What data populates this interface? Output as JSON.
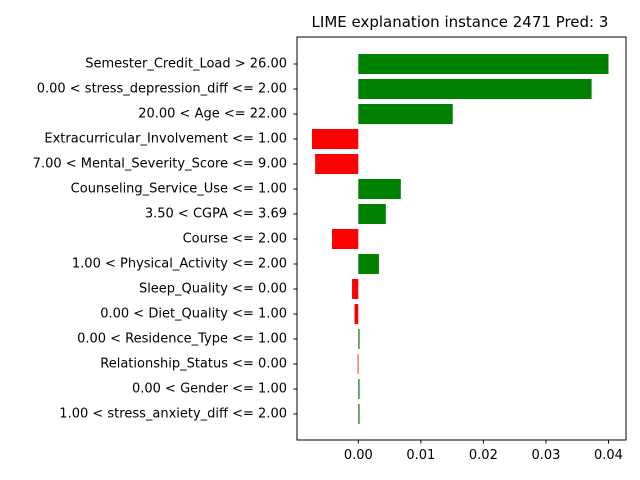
{
  "chart_data": {
    "type": "bar",
    "orientation": "horizontal",
    "title": "LIME explanation instance 2471 Pred: 3",
    "xlabel": "",
    "ylabel": "",
    "xlim": [
      -0.0098,
      0.0428
    ],
    "xticks": [
      0.0,
      0.01,
      0.02,
      0.03,
      0.04
    ],
    "xtick_labels": [
      "0.00",
      "0.01",
      "0.02",
      "0.03",
      "0.04"
    ],
    "grid": false,
    "positive_color": "#008000",
    "negative_color": "#ff0000",
    "categories": [
      "Semester_Credit_Load > 26.00",
      "0.00 < stress_depression_diff <= 2.00",
      "20.00 < Age <= 22.00",
      "Extracurricular_Involvement <= 1.00",
      "7.00 < Mental_Severity_Score <= 9.00",
      "Counseling_Service_Use <= 1.00",
      "3.50 < CGPA <= 3.69",
      "Course <= 2.00",
      "1.00 < Physical_Activity <= 2.00",
      "Sleep_Quality <= 0.00",
      "0.00 < Diet_Quality <= 1.00",
      "0.00 < Residence_Type <= 1.00",
      "Relationship_Status <= 0.00",
      "0.00 < Gender <= 1.00",
      "1.00 < stress_anxiety_diff <= 2.00"
    ],
    "values": [
      0.04,
      0.0373,
      0.0151,
      -0.0074,
      -0.0069,
      0.0068,
      0.0044,
      -0.0042,
      0.0033,
      -0.001,
      -0.0006,
      0.0002,
      -0.0001,
      0.0002,
      0.0002
    ]
  }
}
